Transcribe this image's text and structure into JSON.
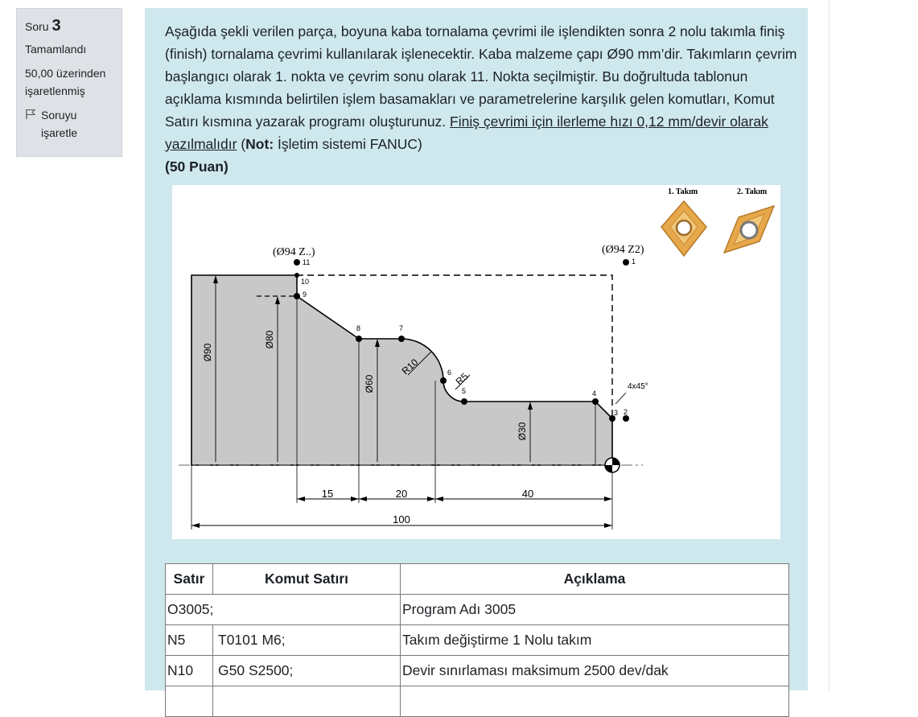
{
  "question_info": {
    "label": "Soru",
    "number": "3",
    "state": "Tamamlandı",
    "grade": "50,00 üzerinden işaretlenmiş",
    "flag_label": "Soruyu işaretle"
  },
  "question": {
    "text_main": "Aşağıda şekli verilen parça, boyuna kaba tornalama çevrimi ile işlendikten sonra 2 nolu takımla finiş (finish) tornalama çevrimi kullanılarak işlenecektir. Kaba malzeme çapı Ø90 mm’dir. Takımların çevrim başlangıcı olarak 1. nokta ve çevrim sonu olarak 11. Nokta seçilmiştir. Bu doğrultuda tablonun açıklama kısmında belirtilen işlem basamakları ve parametrelerine karşılık gelen komutları, Komut Satırı kısmına yazarak programı oluşturunuz.",
    "text_underline": "Finiş çevrimi için ilerleme hızı 0,12 mm/devir olarak yazılmalıdır",
    "text_paren_open": " (",
    "note_label": "Not:",
    "note_text": " İşletim sistemi FANUC)",
    "points": "(50 Puan)"
  },
  "figure": {
    "tool1_label": "1. Takım",
    "tool2_label": "2. Takım",
    "start_label": "(Ø94 Z2)",
    "end_label": "(Ø94 Z..)",
    "point_labels": [
      "1",
      "2",
      "3",
      "4",
      "5",
      "6",
      "7",
      "8",
      "9",
      "10",
      "11"
    ],
    "dia_90": "Ø90",
    "dia_80": "Ø80",
    "dia_60": "Ø60",
    "dia_30": "Ø30",
    "radius_10": "R10",
    "radius_5": "R5",
    "chamfer": "4x45°",
    "len_15": "15",
    "len_20": "20",
    "len_40": "40",
    "len_100": "100",
    "colors": {
      "part_fill": "#c8c8c8",
      "insert_gold": "#e6a84a"
    }
  },
  "table": {
    "headers": [
      "Satır",
      "Komut Satırı",
      "Açıklama"
    ],
    "rows": [
      {
        "line": "O3005;",
        "command": "",
        "desc": "Program Adı 3005"
      },
      {
        "line": "N5",
        "command": "T0101 M6;",
        "desc": "Takım değiştirme 1 Nolu takım"
      },
      {
        "line": "N10",
        "command": "G50 S2500;",
        "desc": "Devir sınırlaması maksimum 2500 dev/dak"
      },
      {
        "line": "",
        "command": "",
        "desc": ""
      }
    ]
  }
}
